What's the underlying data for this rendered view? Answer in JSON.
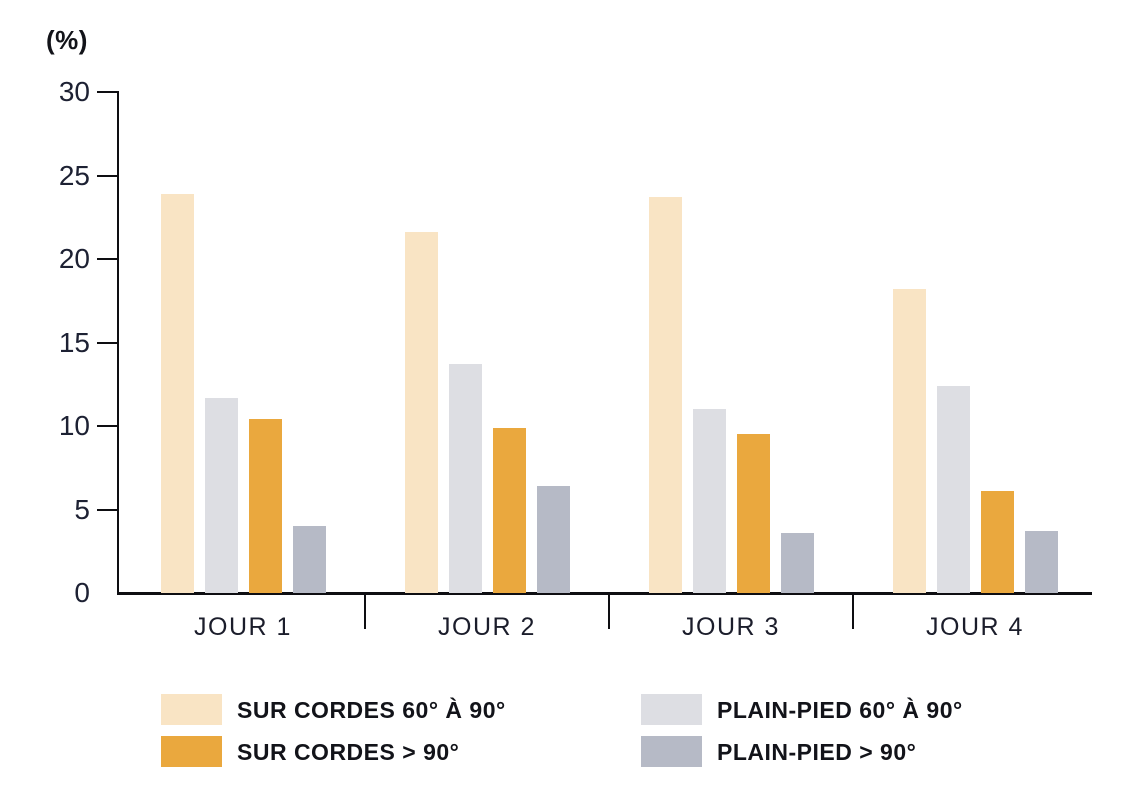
{
  "chart_data": {
    "type": "bar",
    "title": "(%)",
    "ylabel": "(%)",
    "categories": [
      "JOUR 1",
      "JOUR 2",
      "JOUR 3",
      "JOUR 4"
    ],
    "series": [
      {
        "name": "SUR CORDES 60° À 90°",
        "color": "#F9E4C4",
        "values": [
          23.9,
          21.6,
          23.7,
          18.2
        ]
      },
      {
        "name": "PLAIN-PIED 60° À 90°",
        "color": "#DDDEE3",
        "values": [
          11.7,
          13.7,
          11.0,
          12.4
        ]
      },
      {
        "name": "SUR CORDES > 90°",
        "color": "#EAA83E",
        "values": [
          10.4,
          9.9,
          9.5,
          6.1
        ]
      },
      {
        "name": "PLAIN-PIED > 90°",
        "color": "#B6BAC6",
        "values": [
          4.0,
          6.4,
          3.6,
          3.7
        ]
      }
    ],
    "ylim": [
      0,
      30
    ],
    "yticks": [
      30,
      25,
      20,
      15,
      10,
      5,
      0
    ],
    "grid": false,
    "axis_color": "#0e0e12",
    "text_color": "#1d2133",
    "legend": {
      "position": "bottom",
      "columns": [
        [
          "SUR CORDES 60° À 90°",
          "SUR CORDES > 90°"
        ],
        [
          "PLAIN-PIED 60° À 90°",
          "PLAIN-PIED > 90°"
        ]
      ]
    }
  }
}
